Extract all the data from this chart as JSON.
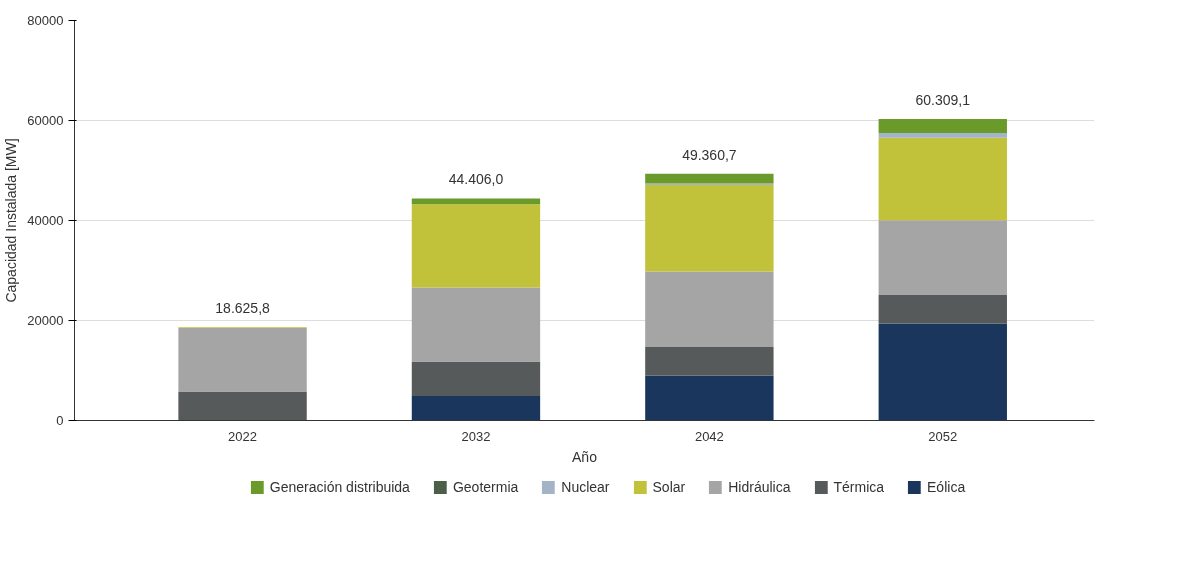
{
  "chart_data": {
    "type": "bar",
    "stacked": true,
    "xlabel": "Año",
    "ylabel": "Capacidad Instalada [MW]",
    "categories": [
      "2022",
      "2032",
      "2042",
      "2052"
    ],
    "series": [
      {
        "name": "Eólica",
        "color": "#1b365d",
        "values": [
          0,
          4900,
          9000,
          19400
        ]
      },
      {
        "name": "Térmica",
        "color": "#575a5a",
        "values": [
          5800,
          6900,
          5680,
          5680
        ]
      },
      {
        "name": "Hidráulica",
        "color": "#a5a5a5",
        "values": [
          12700,
          14800,
          15100,
          14980
        ]
      },
      {
        "name": "Solar",
        "color": "#c2c23a",
        "values": [
          125.8,
          16650,
          17320,
          16510
        ]
      },
      {
        "name": "Nuclear",
        "color": "#a3b4c8",
        "values": [
          0,
          0,
          300,
          920
        ]
      },
      {
        "name": "Geotermia",
        "color": "#4a5e48",
        "values": [
          0,
          0,
          0,
          0
        ]
      },
      {
        "name": "Generación distribuida",
        "color": "#6a9a2a",
        "values": [
          0,
          1156,
          1960.7,
          2819.1
        ]
      }
    ],
    "totals": [
      "18.625,8",
      "44.406,0",
      "49.360,7",
      "60.309,1"
    ],
    "ylim": [
      0,
      80000
    ],
    "yticks": [
      0,
      20000,
      40000,
      60000,
      80000
    ],
    "grid": "y",
    "legend": "bottom"
  }
}
